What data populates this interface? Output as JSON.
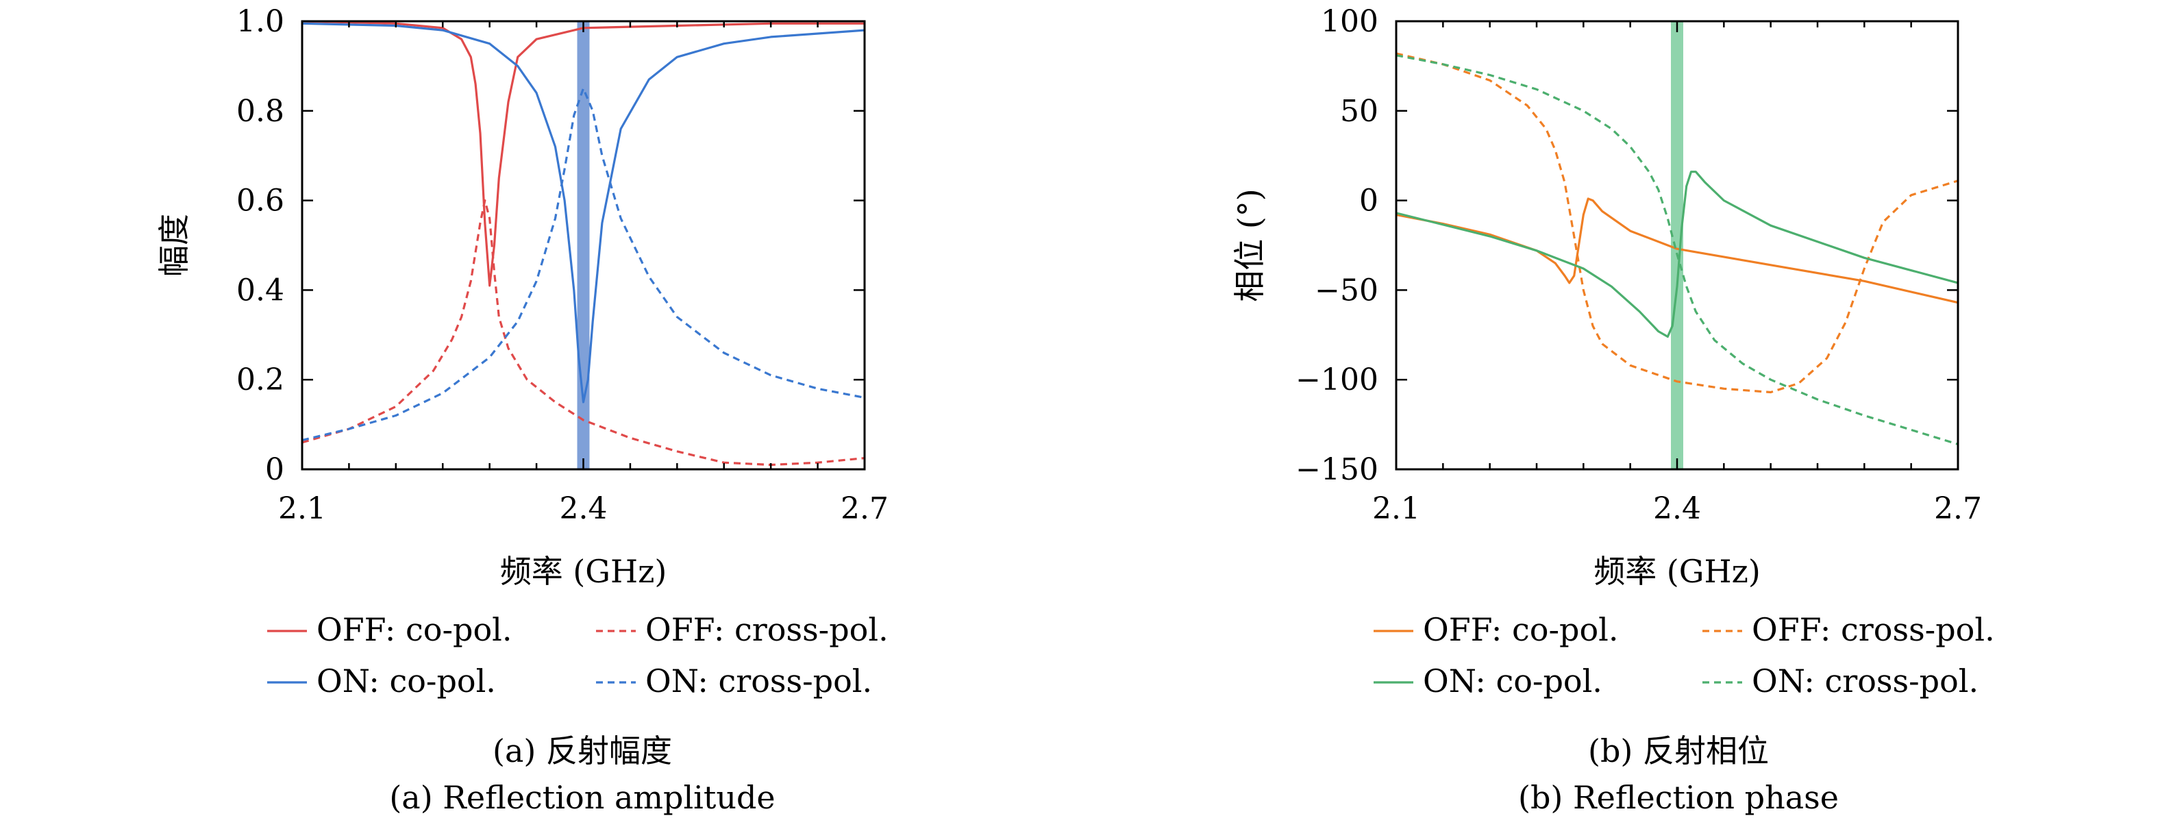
{
  "figure": {
    "caption_a_cn": "(a) 反射幅度",
    "caption_a_en": "(a) Reflection amplitude",
    "caption_b_cn": "(b) 反射相位",
    "caption_b_en": "(b) Reflection phase"
  },
  "chart_data": [
    {
      "id": "amplitude",
      "type": "line",
      "xlabel": "频率 (GHz)",
      "ylabel": "幅度",
      "xlim": [
        2.1,
        2.7
      ],
      "ylim": [
        0,
        1.0
      ],
      "xticks": [
        2.1,
        2.4,
        2.7
      ],
      "xtick_labels": [
        "2.1",
        "2.4",
        "2.7"
      ],
      "yticks": [
        0,
        0.2,
        0.4,
        0.6,
        0.8,
        1.0
      ],
      "ytick_labels": [
        "0",
        "0.2",
        "0.4",
        "0.6",
        "0.8",
        "1.0"
      ],
      "grid": false,
      "legend_position": "below",
      "highlight_band": {
        "x": 2.4,
        "color": "#7fa0d8"
      },
      "series": [
        {
          "name": "OFF: co-pol.",
          "color": "#e04a4a",
          "dash": "solid",
          "x": [
            2.1,
            2.2,
            2.25,
            2.27,
            2.28,
            2.285,
            2.29,
            2.295,
            2.3,
            2.305,
            2.31,
            2.32,
            2.33,
            2.35,
            2.4,
            2.5,
            2.6,
            2.7
          ],
          "y": [
            1.0,
            0.995,
            0.985,
            0.96,
            0.92,
            0.86,
            0.75,
            0.55,
            0.41,
            0.5,
            0.65,
            0.82,
            0.92,
            0.96,
            0.985,
            0.99,
            0.995,
            0.995
          ]
        },
        {
          "name": "OFF: cross-pol.",
          "color": "#e04a4a",
          "dash": "dashed",
          "x": [
            2.1,
            2.15,
            2.2,
            2.24,
            2.26,
            2.27,
            2.28,
            2.29,
            2.295,
            2.3,
            2.305,
            2.31,
            2.32,
            2.34,
            2.37,
            2.4,
            2.45,
            2.5,
            2.55,
            2.6,
            2.65,
            2.7
          ],
          "y": [
            0.06,
            0.09,
            0.14,
            0.22,
            0.29,
            0.34,
            0.42,
            0.55,
            0.6,
            0.56,
            0.44,
            0.34,
            0.27,
            0.2,
            0.15,
            0.11,
            0.07,
            0.04,
            0.015,
            0.01,
            0.015,
            0.025
          ]
        },
        {
          "name": "ON: co-pol.",
          "color": "#3a78d0",
          "dash": "solid",
          "x": [
            2.1,
            2.2,
            2.25,
            2.3,
            2.33,
            2.35,
            2.37,
            2.38,
            2.39,
            2.395,
            2.4,
            2.405,
            2.41,
            2.42,
            2.44,
            2.47,
            2.5,
            2.55,
            2.6,
            2.7
          ],
          "y": [
            0.995,
            0.99,
            0.98,
            0.95,
            0.9,
            0.84,
            0.72,
            0.6,
            0.4,
            0.25,
            0.15,
            0.2,
            0.33,
            0.55,
            0.76,
            0.87,
            0.92,
            0.95,
            0.965,
            0.98
          ]
        },
        {
          "name": "ON: cross-pol.",
          "color": "#3a78d0",
          "dash": "dashed",
          "x": [
            2.1,
            2.15,
            2.2,
            2.25,
            2.3,
            2.33,
            2.35,
            2.37,
            2.38,
            2.39,
            2.4,
            2.41,
            2.42,
            2.44,
            2.47,
            2.5,
            2.55,
            2.6,
            2.65,
            2.7
          ],
          "y": [
            0.065,
            0.09,
            0.12,
            0.17,
            0.25,
            0.33,
            0.42,
            0.56,
            0.67,
            0.79,
            0.85,
            0.8,
            0.7,
            0.56,
            0.43,
            0.34,
            0.26,
            0.21,
            0.18,
            0.16
          ]
        }
      ]
    },
    {
      "id": "phase",
      "type": "line",
      "xlabel": "频率 (GHz)",
      "ylabel": "相位 (°)",
      "xlim": [
        2.1,
        2.7
      ],
      "ylim": [
        -150,
        100
      ],
      "xticks": [
        2.1,
        2.4,
        2.7
      ],
      "xtick_labels": [
        "2.1",
        "2.4",
        "2.7"
      ],
      "yticks": [
        -150,
        -100,
        -50,
        0,
        50,
        100
      ],
      "ytick_labels": [
        "−150",
        "−100",
        "−50",
        "0",
        "50",
        "100"
      ],
      "grid": false,
      "legend_position": "below",
      "highlight_band": {
        "x": 2.4,
        "color": "#8fd4ac"
      },
      "series": [
        {
          "name": "OFF: co-pol.",
          "color": "#f07f24",
          "dash": "solid",
          "x": [
            2.1,
            2.15,
            2.2,
            2.25,
            2.27,
            2.28,
            2.285,
            2.29,
            2.295,
            2.3,
            2.305,
            2.31,
            2.32,
            2.35,
            2.4,
            2.5,
            2.6,
            2.7
          ],
          "y": [
            -8,
            -13,
            -19,
            -28,
            -35,
            -42,
            -46,
            -42,
            -25,
            -8,
            1,
            0,
            -6,
            -17,
            -27,
            -36,
            -45,
            -57
          ]
        },
        {
          "name": "OFF: cross-pol.",
          "color": "#f07f24",
          "dash": "dashed",
          "x": [
            2.1,
            2.15,
            2.2,
            2.24,
            2.26,
            2.27,
            2.28,
            2.29,
            2.3,
            2.31,
            2.32,
            2.35,
            2.4,
            2.45,
            2.5,
            2.53,
            2.56,
            2.58,
            2.6,
            2.62,
            2.65,
            2.7
          ],
          "y": [
            82,
            76,
            67,
            53,
            40,
            28,
            10,
            -20,
            -50,
            -70,
            -80,
            -92,
            -101,
            -105,
            -107,
            -102,
            -88,
            -68,
            -38,
            -12,
            3,
            11
          ]
        },
        {
          "name": "ON: co-pol.",
          "color": "#4caf6e",
          "dash": "solid",
          "x": [
            2.1,
            2.2,
            2.25,
            2.3,
            2.33,
            2.36,
            2.38,
            2.39,
            2.395,
            2.4,
            2.405,
            2.41,
            2.415,
            2.42,
            2.43,
            2.45,
            2.5,
            2.6,
            2.7
          ],
          "y": [
            -7,
            -20,
            -28,
            -38,
            -48,
            -62,
            -73,
            -76,
            -70,
            -48,
            -15,
            8,
            16,
            16,
            10,
            0,
            -14,
            -32,
            -46
          ]
        },
        {
          "name": "ON: cross-pol.",
          "color": "#4caf6e",
          "dash": "dashed",
          "x": [
            2.1,
            2.15,
            2.2,
            2.25,
            2.3,
            2.33,
            2.35,
            2.37,
            2.38,
            2.39,
            2.4,
            2.41,
            2.42,
            2.44,
            2.47,
            2.5,
            2.55,
            2.6,
            2.65,
            2.7
          ],
          "y": [
            81,
            76,
            70,
            62,
            50,
            40,
            30,
            16,
            6,
            -10,
            -30,
            -48,
            -62,
            -78,
            -91,
            -100,
            -111,
            -120,
            -128,
            -136
          ]
        }
      ]
    }
  ]
}
